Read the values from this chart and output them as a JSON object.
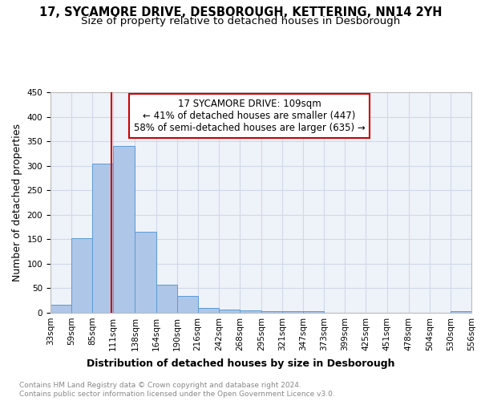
{
  "title": "17, SYCAMORE DRIVE, DESBOROUGH, KETTERING, NN14 2YH",
  "subtitle": "Size of property relative to detached houses in Desborough",
  "xlabel": "Distribution of detached houses by size in Desborough",
  "ylabel": "Number of detached properties",
  "footnote1": "Contains HM Land Registry data © Crown copyright and database right 2024.",
  "footnote2": "Contains public sector information licensed under the Open Government Licence v3.0.",
  "annotation_line1": "17 SYCAMORE DRIVE: 109sqm",
  "annotation_line2": "← 41% of detached houses are smaller (447)",
  "annotation_line3": "58% of semi-detached houses are larger (635) →",
  "property_size": 109,
  "bar_left_edges": [
    33,
    59,
    85,
    111,
    138,
    164,
    190,
    216,
    242,
    268,
    295,
    321,
    347,
    373,
    399,
    425,
    451,
    478,
    504,
    530
  ],
  "bar_widths": [
    26,
    26,
    26,
    27,
    26,
    26,
    26,
    26,
    26,
    27,
    26,
    26,
    26,
    26,
    26,
    26,
    27,
    26,
    26,
    26
  ],
  "bar_heights": [
    17,
    152,
    305,
    340,
    165,
    57,
    34,
    10,
    6,
    5,
    4,
    4,
    4,
    0,
    0,
    0,
    0,
    0,
    0,
    4
  ],
  "bar_color": "#aec6e8",
  "bar_edge_color": "#5b9bd5",
  "vline_x": 109,
  "vline_color": "#cc0000",
  "xlim": [
    33,
    556
  ],
  "ylim": [
    0,
    450
  ],
  "yticks": [
    0,
    50,
    100,
    150,
    200,
    250,
    300,
    350,
    400,
    450
  ],
  "xtick_labels": [
    "33sqm",
    "59sqm",
    "85sqm",
    "111sqm",
    "138sqm",
    "164sqm",
    "190sqm",
    "216sqm",
    "242sqm",
    "268sqm",
    "295sqm",
    "321sqm",
    "347sqm",
    "373sqm",
    "399sqm",
    "425sqm",
    "451sqm",
    "478sqm",
    "504sqm",
    "530sqm",
    "556sqm"
  ],
  "xtick_positions": [
    33,
    59,
    85,
    111,
    138,
    164,
    190,
    216,
    242,
    268,
    295,
    321,
    347,
    373,
    399,
    425,
    451,
    478,
    504,
    530,
    556
  ],
  "grid_color": "#d0d8e8",
  "background_color": "#eef2f9",
  "box_color": "#cc0000",
  "title_fontsize": 10.5,
  "subtitle_fontsize": 9.5,
  "xlabel_fontsize": 9,
  "ylabel_fontsize": 9,
  "tick_fontsize": 7.5,
  "annotation_fontsize": 8.5,
  "footnote_fontsize": 6.5
}
